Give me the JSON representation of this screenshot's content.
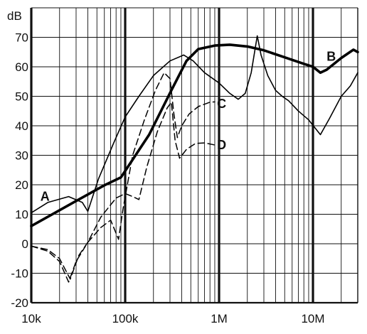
{
  "chart_data": {
    "type": "line",
    "y_unit": "dB",
    "x_scale": "log",
    "xlim": [
      10000,
      30000000
    ],
    "ylim": [
      -20,
      80
    ],
    "grid": true,
    "x_ticks": [
      {
        "value": 10000,
        "label": "10k"
      },
      {
        "value": 100000,
        "label": "100k"
      },
      {
        "value": 1000000,
        "label": "1M"
      },
      {
        "value": 10000000,
        "label": "10M"
      }
    ],
    "y_ticks": [
      {
        "value": -20,
        "label": "-20"
      },
      {
        "value": -10,
        "label": "-10"
      },
      {
        "value": 0,
        "label": "0"
      },
      {
        "value": 10,
        "label": "10"
      },
      {
        "value": 20,
        "label": "20"
      },
      {
        "value": 30,
        "label": "30"
      },
      {
        "value": 40,
        "label": "40"
      },
      {
        "value": 50,
        "label": "50"
      },
      {
        "value": 60,
        "label": "60"
      },
      {
        "value": 70,
        "label": "70"
      }
    ],
    "series": [
      {
        "name": "A",
        "label_at": [
          12500,
          16
        ],
        "color": "#000000",
        "style": "thick",
        "points": [
          [
            10000,
            6
          ],
          [
            30000,
            14.5
          ],
          [
            60000,
            19.8
          ],
          [
            90000,
            22.5
          ],
          [
            180000,
            37
          ],
          [
            310000,
            52
          ],
          [
            450000,
            62
          ],
          [
            600000,
            66
          ],
          [
            900000,
            67.2
          ],
          [
            1300000,
            67.5
          ],
          [
            2000000,
            66.9
          ],
          [
            3000000,
            65.6
          ],
          [
            5000000,
            63.2
          ],
          [
            8000000,
            61
          ],
          [
            10000000,
            60
          ],
          [
            12000000,
            58
          ],
          [
            14000000,
            59
          ],
          [
            20000000,
            63
          ],
          [
            27000000,
            65.8
          ],
          [
            30000000,
            65
          ]
        ]
      },
      {
        "name": "B",
        "label_at": [
          14000000,
          63.5
        ],
        "color": "#000000",
        "style": "thin",
        "points": [
          [
            10000,
            10.5
          ],
          [
            15000,
            14
          ],
          [
            25000,
            16
          ],
          [
            35000,
            14
          ],
          [
            40000,
            11
          ],
          [
            52000,
            22
          ],
          [
            75000,
            34
          ],
          [
            100000,
            43
          ],
          [
            140000,
            50
          ],
          [
            200000,
            57
          ],
          [
            300000,
            62
          ],
          [
            420000,
            64
          ],
          [
            530000,
            62
          ],
          [
            700000,
            58
          ],
          [
            1000000,
            54.5
          ],
          [
            1300000,
            51
          ],
          [
            1600000,
            49
          ],
          [
            1900000,
            51
          ],
          [
            2200000,
            58
          ],
          [
            2550000,
            70.5
          ],
          [
            2800000,
            64
          ],
          [
            3300000,
            57
          ],
          [
            4000000,
            52
          ],
          [
            4700000,
            50
          ],
          [
            5500000,
            48.5
          ],
          [
            7000000,
            45
          ],
          [
            9000000,
            42
          ],
          [
            11000000,
            38.5
          ],
          [
            12000000,
            37
          ],
          [
            15000000,
            42.5
          ],
          [
            20000000,
            50
          ],
          [
            25000000,
            53.5
          ],
          [
            30000000,
            58
          ]
        ]
      },
      {
        "name": "C",
        "label_at": [
          950000,
          47.5
        ],
        "color": "#000000",
        "style": "dashed",
        "points": [
          [
            10000,
            -0.8
          ],
          [
            15000,
            -2.5
          ],
          [
            20000,
            -6
          ],
          [
            25000,
            -13
          ],
          [
            30000,
            -6
          ],
          [
            40000,
            0.5
          ],
          [
            55000,
            5.5
          ],
          [
            70000,
            8
          ],
          [
            85000,
            1.5
          ],
          [
            95000,
            12
          ],
          [
            120000,
            30
          ],
          [
            160000,
            42
          ],
          [
            210000,
            52
          ],
          [
            260000,
            58
          ],
          [
            300000,
            56
          ],
          [
            330000,
            44
          ],
          [
            360000,
            36
          ],
          [
            400000,
            40
          ],
          [
            480000,
            44
          ],
          [
            600000,
            46.5
          ],
          [
            800000,
            48
          ],
          [
            900000,
            48.1
          ]
        ]
      },
      {
        "name": "D",
        "label_at": [
          950000,
          33.5
        ],
        "color": "#000000",
        "style": "dashed",
        "points": [
          [
            10000,
            -0.8
          ],
          [
            15000,
            -2
          ],
          [
            20000,
            -5
          ],
          [
            26000,
            -12
          ],
          [
            32000,
            -4
          ],
          [
            40000,
            0.5
          ],
          [
            55000,
            9
          ],
          [
            80000,
            15.5
          ],
          [
            100000,
            17
          ],
          [
            120000,
            16
          ],
          [
            140000,
            15
          ],
          [
            170000,
            26
          ],
          [
            220000,
            38
          ],
          [
            280000,
            46
          ],
          [
            310000,
            48
          ],
          [
            340000,
            35
          ],
          [
            380000,
            29
          ],
          [
            450000,
            32
          ],
          [
            560000,
            34
          ],
          [
            700000,
            34.2
          ],
          [
            900000,
            33.5
          ]
        ]
      }
    ]
  }
}
